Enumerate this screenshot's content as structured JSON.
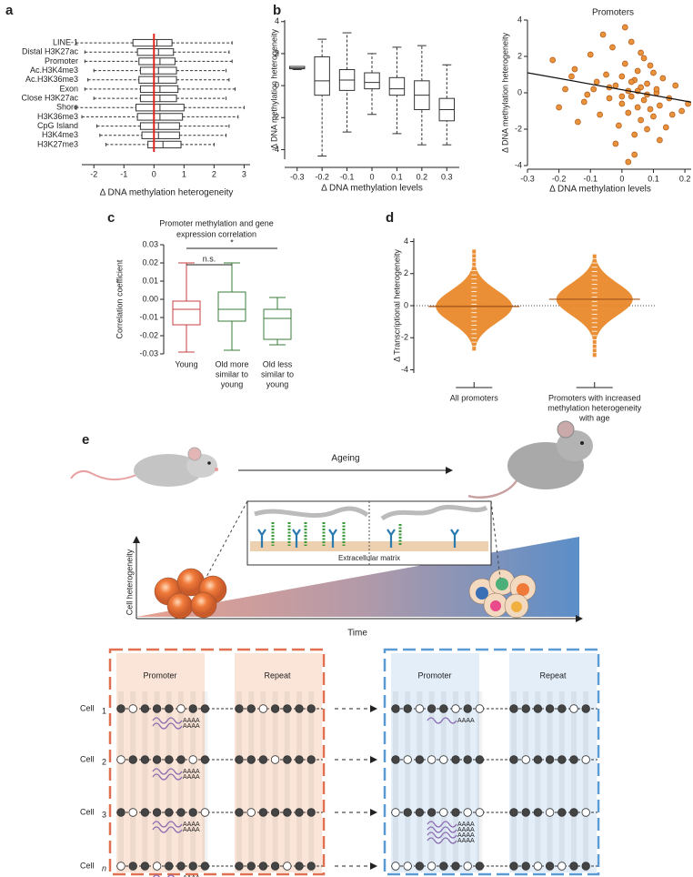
{
  "panel_labels": [
    "a",
    "b",
    "c",
    "d",
    "e"
  ],
  "chart_data": [
    {
      "type": "box",
      "orient": "h",
      "categories": [
        "LINE-1",
        "Distal H3K27ac",
        "Promoter",
        "Ac.H3K4me3",
        "Ac.H3K36me3",
        "Exon",
        "Close H3K27ac",
        "Shore",
        "H3K36me3",
        "CpG Island",
        "H3K4me3",
        "H3K27me3"
      ],
      "boxes": [
        {
          "whislo": -2.6,
          "q1": -0.7,
          "med": 0.1,
          "q3": 0.6,
          "whishi": 2.6
        },
        {
          "whislo": -2.3,
          "q1": -0.55,
          "med": 0.15,
          "q3": 0.65,
          "whishi": 2.5
        },
        {
          "whislo": -2.3,
          "q1": -0.5,
          "med": 0.2,
          "q3": 0.7,
          "whishi": 2.6
        },
        {
          "whislo": -2.0,
          "q1": -0.45,
          "med": 0.15,
          "q3": 0.75,
          "whishi": 2.4
        },
        {
          "whislo": -2.2,
          "q1": -0.5,
          "med": 0.15,
          "q3": 0.75,
          "whishi": 2.5
        },
        {
          "whislo": -2.3,
          "q1": -0.45,
          "med": 0.2,
          "q3": 0.8,
          "whishi": 2.7
        },
        {
          "whislo": -2.0,
          "q1": -0.45,
          "med": 0.2,
          "q3": 0.75,
          "whishi": 2.4
        },
        {
          "whislo": -2.6,
          "q1": -0.6,
          "med": 0.2,
          "q3": 1.0,
          "whishi": 3.0
        },
        {
          "whislo": -2.4,
          "q1": -0.55,
          "med": 0.2,
          "q3": 0.95,
          "whishi": 2.8
        },
        {
          "whislo": -1.9,
          "q1": -0.45,
          "med": 0.15,
          "q3": 0.85,
          "whishi": 2.5
        },
        {
          "whislo": -1.8,
          "q1": -0.4,
          "med": 0.15,
          "q3": 0.85,
          "whishi": 2.4
        },
        {
          "whislo": -1.6,
          "q1": -0.2,
          "med": 0.3,
          "q3": 0.9,
          "whishi": 2.0
        }
      ],
      "xlim": [
        -2.4,
        3.2
      ],
      "xticks": [
        -2,
        -1,
        0,
        1,
        2,
        3
      ],
      "xlabel": "Δ DNA methylation heterogeneity",
      "refline": 0,
      "refline_color": "#e0241b",
      "color": "#333333",
      "dashed_whiskers": true
    },
    {
      "type": "box",
      "orient": "v",
      "categories": [
        "-0.3",
        "-0.2",
        "-0.1",
        "0",
        "0.1",
        "0.2",
        "0.3"
      ],
      "boxes": [
        {
          "whislo": 1.0,
          "q1": 1.05,
          "med": 1.1,
          "q3": 1.2,
          "whishi": 1.2
        },
        {
          "whislo": -4.4,
          "q1": -0.6,
          "med": 0.3,
          "q3": 1.8,
          "whishi": 2.9
        },
        {
          "whislo": -2.9,
          "q1": -0.3,
          "med": 0.35,
          "q3": 1.0,
          "whishi": 3.3
        },
        {
          "whislo": -1.8,
          "q1": -0.2,
          "med": 0.2,
          "q3": 0.8,
          "whishi": 2.0
        },
        {
          "whislo": -3.0,
          "q1": -0.6,
          "med": -0.2,
          "q3": 0.5,
          "whishi": 2.4
        },
        {
          "whislo": -3.7,
          "q1": -1.5,
          "med": -0.6,
          "q3": 0.3,
          "whishi": 2.5
        },
        {
          "whislo": -3.7,
          "q1": -2.2,
          "med": -1.5,
          "q3": -0.8,
          "whishi": 1.3
        }
      ],
      "ylim": [
        -4.6,
        4.1
      ],
      "yticks": [
        -4,
        -2,
        0,
        2,
        4
      ],
      "xlabel": "Δ DNA methylation levels",
      "ylabel": "Δ DNA methylation heterogeneity",
      "color": "#333333",
      "dashed_whiskers": true,
      "x_axis_line": true
    },
    {
      "type": "scatter",
      "title": "Promoters",
      "x": [
        -0.22,
        -0.18,
        -0.15,
        -0.12,
        -0.1,
        -0.08,
        -0.07,
        -0.05,
        -0.04,
        -0.03,
        -0.02,
        -0.01,
        0,
        0,
        0.01,
        0.02,
        0.02,
        0.03,
        0.03,
        0.04,
        0.04,
        0.05,
        0.05,
        0.06,
        0.06,
        0.07,
        0.07,
        0.08,
        0.08,
        0.09,
        0.1,
        0.1,
        0.11,
        0.12,
        0.13,
        0.14,
        0.15,
        0.17,
        0.19,
        0.21,
        -0.2,
        -0.14,
        -0.09,
        -0.06,
        -0.02,
        0.01,
        0.04,
        0.06,
        0.09,
        0.12,
        -0.11,
        -0.04,
        0,
        0.03,
        0.05,
        0.08,
        0.11,
        0.16,
        -0.16,
        0.02
      ],
      "y": [
        1.8,
        0.2,
        1.3,
        -0.5,
        2.1,
        0.6,
        -1.2,
        1.0,
        -0.3,
        2.5,
        0.4,
        -1.8,
        0.9,
        -0.6,
        1.6,
        0.1,
        -1.1,
        2.8,
        -0.2,
        0.7,
        -2.3,
        1.2,
        -0.8,
        0.3,
        -1.5,
        1.9,
        -0.4,
        0.5,
        -2.0,
        -0.9,
        1.1,
        -1.3,
        0,
        -0.7,
        0.8,
        -1.9,
        -0.3,
        0.4,
        -1.0,
        -0.6,
        -0.8,
        -1.6,
        0.2,
        3.2,
        -2.8,
        3.6,
        -3.4,
        2.2,
        1.5,
        -2.6,
        -0.1,
        0.3,
        -0.2,
        0.6,
        0.1,
        -0.1,
        0.2,
        -1.2,
        0.9,
        -3.8
      ],
      "fit": {
        "intercept": 0.17,
        "slope": -3.1
      },
      "xlim": [
        -0.3,
        0.22
      ],
      "xticks": [
        -0.3,
        -0.2,
        -0.1,
        0,
        0.1,
        0.2
      ],
      "ylim": [
        -4,
        4
      ],
      "yticks": [
        -4,
        -2,
        0,
        2,
        4
      ],
      "xlabel": "Δ DNA methylation levels",
      "ylabel": "Δ DNA methylation heterogeneity",
      "color": "#e8923a",
      "edge_color": "#b3591a"
    },
    {
      "type": "box",
      "orient": "v",
      "title": [
        "Promoter methylation and gene",
        "expression correlation"
      ],
      "categories": [
        [
          "Young"
        ],
        [
          "Old more",
          "similar to",
          "young"
        ],
        [
          "Old less",
          "similar to",
          "young"
        ]
      ],
      "boxes": [
        {
          "whislo": -0.029,
          "q1": -0.014,
          "med": -0.0055,
          "q3": -0.001,
          "whishi": 0.02
        },
        {
          "whislo": -0.028,
          "q1": -0.012,
          "med": -0.0055,
          "q3": 0.004,
          "whishi": 0.02
        },
        {
          "whislo": -0.025,
          "q1": -0.022,
          "med": -0.0105,
          "q3": -0.0055,
          "whishi": 0.001
        }
      ],
      "ylim": [
        -0.03,
        0.03
      ],
      "yticks": [
        0.03,
        0.02,
        0.01,
        {
          "value": 0,
          "label": "0.00"
        },
        -0.01,
        -0.02,
        -0.03
      ],
      "ylabel": "Correlation coefficient",
      "colors": [
        "#c94040",
        "#3a7d3a",
        "#3a7d3a"
      ],
      "annotations": [
        "n.s.",
        "*"
      ]
    },
    {
      "type": "violin",
      "categories": [
        [
          "All promoters"
        ],
        [
          "Promoters with increased",
          "methylation heterogeneity",
          "with age"
        ]
      ],
      "means": [
        -0.05,
        0.4
      ],
      "ranges": [
        [
          -2.8,
          3.5
        ],
        [
          -3.2,
          3.2
        ]
      ],
      "ylim": [
        -4.2,
        4.2
      ],
      "yticks": [
        -4,
        -2,
        0,
        2,
        4
      ],
      "ylabel": "Δ Transcriptional heterogeneity",
      "refline": 0,
      "color": "#e8831f",
      "mean_color": "#a0521a"
    }
  ],
  "diagram": {
    "ageing": "Ageing",
    "matrix": "Extracellular matrix",
    "y_axis": "Cell heterogeneity",
    "x_axis": "Time",
    "regions": [
      "Promoter",
      "Repeat"
    ],
    "cell": "Cell",
    "cell_ids": [
      "1",
      "2",
      "3",
      "n"
    ],
    "polyA": "AAAA",
    "transcripts": [
      [
        2,
        2,
        2,
        2
      ],
      [
        1,
        0,
        4,
        0
      ]
    ]
  }
}
